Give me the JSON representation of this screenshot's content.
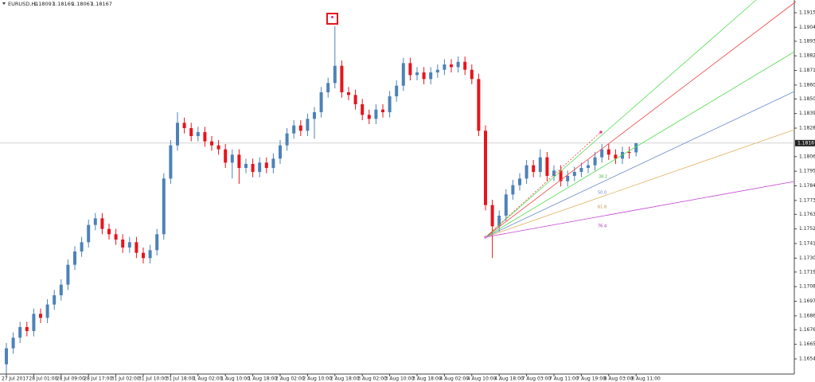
{
  "chart_data": {
    "type": "candlestick",
    "symbol": "EURUSD,H1",
    "categories": [
      "27 Jul 2017",
      null,
      null,
      null,
      "28 Jul 01:00",
      null,
      null,
      null,
      "28 Jul 09:00",
      null,
      null,
      null,
      "28 Jul 17:00",
      null,
      null,
      null,
      "31 Jul 02:00",
      null,
      null,
      null,
      "31 Jul 10:00",
      null,
      null,
      null,
      "31 Jul 18:00",
      null,
      null,
      null,
      "1 Aug 02:00",
      null,
      null,
      null,
      "1 Aug 10:00",
      null,
      null,
      null,
      "1 Aug 18:00",
      null,
      null,
      null,
      "2 Aug 02:00",
      null,
      null,
      null,
      "2 Aug 10:00",
      null,
      null,
      null,
      "2 Aug 18:00",
      null,
      null,
      null,
      "3 Aug 02:00",
      null,
      null,
      null,
      "3 Aug 10:00",
      null,
      null,
      null,
      "3 Aug 18:00",
      null,
      null,
      null,
      "4 Aug 02:00",
      null,
      null,
      null,
      "4 Aug 10:00",
      null,
      null,
      null,
      "4 Aug 18:00",
      null,
      null,
      null,
      "7 Aug 03:00",
      null,
      null,
      null,
      "7 Aug 11:00",
      null,
      null,
      null,
      "7 Aug 19:00",
      null,
      null,
      null,
      "8 Aug 03:00",
      null,
      null,
      null,
      "8 Aug 11:00"
    ],
    "open": [
      1.165,
      1.1662,
      1.167,
      1.1678,
      1.1675,
      1.1688,
      1.1685,
      1.1695,
      1.1702,
      1.171,
      1.1725,
      1.1735,
      1.1742,
      1.1755,
      1.176,
      1.1752,
      1.1748,
      1.1744,
      1.1738,
      1.1742,
      1.1734,
      1.173,
      1.1736,
      1.1748,
      1.179,
      1.1815,
      1.1832,
      1.1828,
      1.1822,
      1.1825,
      1.1818,
      1.1815,
      1.1812,
      1.1802,
      1.1808,
      1.1798,
      1.1801,
      1.1795,
      1.1802,
      1.1798,
      1.1805,
      1.1815,
      1.1824,
      1.183,
      1.1826,
      1.1835,
      1.184,
      1.1855,
      1.1862,
      1.1875,
      1.1855,
      1.1853,
      1.1846,
      1.1838,
      1.1835,
      1.1842,
      1.184,
      1.1852,
      1.186,
      1.1877,
      1.1868,
      1.187,
      1.1865,
      1.187,
      1.1872,
      1.1876,
      1.1874,
      1.1878,
      1.1872,
      1.1865,
      1.1826,
      1.177,
      1.1754,
      1.1762,
      1.1778,
      1.1785,
      1.179,
      1.18,
      1.1795,
      1.1806,
      1.1792,
      1.1796,
      1.1788,
      1.1792,
      1.1795,
      1.1798,
      1.18,
      1.1806,
      1.1812,
      1.1808,
      1.1805,
      1.181,
      1.18097
    ],
    "high": [
      1.1666,
      1.1674,
      1.1682,
      1.1682,
      1.1692,
      1.1692,
      1.1699,
      1.1706,
      1.1714,
      1.1729,
      1.1739,
      1.1746,
      1.1759,
      1.1764,
      1.1764,
      1.1756,
      1.1752,
      1.1748,
      1.1746,
      1.1746,
      1.1738,
      1.174,
      1.1752,
      1.1794,
      1.1819,
      1.184,
      1.1836,
      1.1832,
      1.1829,
      1.1829,
      1.1822,
      1.1819,
      1.1816,
      1.1812,
      1.1812,
      1.1805,
      1.1805,
      1.1806,
      1.1806,
      1.1809,
      1.1819,
      1.1828,
      1.1834,
      1.1834,
      1.1839,
      1.1844,
      1.1859,
      1.1866,
      1.1905,
      1.1879,
      1.1859,
      1.1857,
      1.185,
      1.1842,
      1.1846,
      1.1846,
      1.1856,
      1.1864,
      1.1881,
      1.1881,
      1.1874,
      1.1874,
      1.1874,
      1.1876,
      1.188,
      1.188,
      1.1882,
      1.1882,
      1.1876,
      1.1869,
      1.183,
      1.1774,
      1.1766,
      1.1782,
      1.1789,
      1.1794,
      1.1804,
      1.1804,
      1.1812,
      1.181,
      1.18,
      1.18,
      1.1796,
      1.1799,
      1.1802,
      1.1804,
      1.181,
      1.1816,
      1.1816,
      1.1812,
      1.1814,
      1.1814,
      1.18169
    ],
    "low": [
      1.1643,
      1.1658,
      1.1666,
      1.1671,
      1.1671,
      1.1681,
      1.1681,
      1.1691,
      1.1698,
      1.1706,
      1.1721,
      1.1731,
      1.1738,
      1.1751,
      1.1748,
      1.1744,
      1.174,
      1.1734,
      1.1734,
      1.173,
      1.1726,
      1.1726,
      1.1732,
      1.1744,
      1.1786,
      1.1811,
      1.1824,
      1.1818,
      1.1818,
      1.1814,
      1.1811,
      1.1808,
      1.1798,
      1.179,
      1.1786,
      1.1794,
      1.1791,
      1.1791,
      1.1794,
      1.1794,
      1.1801,
      1.1811,
      1.182,
      1.1822,
      1.1822,
      1.182,
      1.1836,
      1.1851,
      1.1858,
      1.1851,
      1.1849,
      1.1842,
      1.1834,
      1.1831,
      1.1831,
      1.1836,
      1.1836,
      1.1848,
      1.1856,
      1.1864,
      1.1864,
      1.1861,
      1.1861,
      1.1866,
      1.1868,
      1.187,
      1.187,
      1.1868,
      1.1861,
      1.1822,
      1.1766,
      1.173,
      1.175,
      1.1758,
      1.1774,
      1.1781,
      1.1786,
      1.1791,
      1.1791,
      1.1788,
      1.1788,
      1.1784,
      1.1784,
      1.1788,
      1.1791,
      1.1794,
      1.1796,
      1.1802,
      1.1804,
      1.1801,
      1.1801,
      1.1805,
      1.18067
    ],
    "close": [
      1.1662,
      1.167,
      1.1678,
      1.1675,
      1.1688,
      1.1685,
      1.1695,
      1.1702,
      1.171,
      1.1725,
      1.1735,
      1.1742,
      1.1755,
      1.176,
      1.1752,
      1.1748,
      1.1744,
      1.1738,
      1.1742,
      1.1734,
      1.173,
      1.1736,
      1.1748,
      1.179,
      1.1815,
      1.1832,
      1.1828,
      1.1822,
      1.1825,
      1.1818,
      1.1815,
      1.1812,
      1.1802,
      1.1808,
      1.1798,
      1.1801,
      1.1795,
      1.1802,
      1.1798,
      1.1805,
      1.1815,
      1.1824,
      1.183,
      1.1826,
      1.1835,
      1.184,
      1.1855,
      1.1862,
      1.1875,
      1.1855,
      1.1853,
      1.1846,
      1.1838,
      1.1835,
      1.1842,
      1.184,
      1.1852,
      1.186,
      1.1877,
      1.1868,
      1.187,
      1.1865,
      1.187,
      1.1872,
      1.1876,
      1.1874,
      1.1878,
      1.1872,
      1.1865,
      1.1826,
      1.177,
      1.1754,
      1.1762,
      1.1778,
      1.1785,
      1.179,
      1.18,
      1.1795,
      1.1806,
      1.1792,
      1.1796,
      1.1788,
      1.1792,
      1.1795,
      1.1798,
      1.18,
      1.1806,
      1.1812,
      1.1808,
      1.1805,
      1.181,
      1.18097,
      1.18167
    ],
    "up_color": "#4d82b8",
    "down_color": "#e8141c",
    "ylim": [
      1.16426,
      1.19246
    ],
    "yticks": [
      {
        "value": 1.1915,
        "label": "1.19150"
      },
      {
        "value": 1.1904,
        "label": "1.19040"
      },
      1.18935,
      1.18825,
      1.18715,
      1.18605,
      {
        "value": 1.185,
        "label": "1.18500"
      },
      {
        "value": 1.1839,
        "label": "1.18390"
      },
      {
        "value": 1.1828,
        "label": "1.18280"
      },
      1.18065,
      1.17955,
      1.17845,
      1.17735,
      {
        "value": 1.1763,
        "label": "1.17630"
      },
      {
        "value": 1.1752,
        "label": "1.17520"
      },
      {
        "value": 1.1741,
        "label": "1.17410"
      },
      {
        "value": 1.173,
        "label": "1.17300"
      },
      1.17195,
      1.17085,
      1.16975,
      1.16865,
      {
        "value": 1.1676,
        "label": "1.16760"
      },
      {
        "value": 1.1665,
        "label": "1.16650"
      },
      {
        "value": 1.1654,
        "label": "1.16540"
      }
    ],
    "fan_labels": [
      "38.2",
      "50.0",
      "61.8",
      "76.4"
    ]
  }
}
